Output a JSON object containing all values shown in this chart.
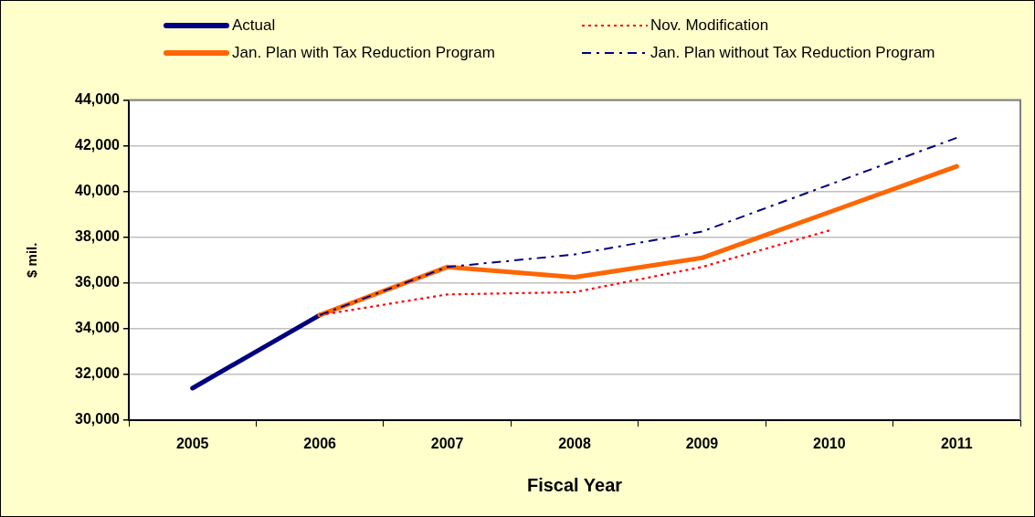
{
  "chart_data": {
    "type": "line",
    "xlabel": "Fiscal Year",
    "ylabel": "$ mil.",
    "categories": [
      "2005",
      "2006",
      "2007",
      "2008",
      "2009",
      "2010",
      "2011"
    ],
    "series": [
      {
        "name": "Actual",
        "color": "#000080",
        "line_style": "solid",
        "values": [
          31400,
          34600,
          null,
          null,
          null,
          null,
          null
        ]
      },
      {
        "name": "Nov. Modification",
        "color": "#ff0000",
        "line_style": "dotted",
        "values": [
          null,
          34600,
          35500,
          35600,
          36700,
          38300,
          null
        ]
      },
      {
        "name": "Jan. Plan with Tax Reduction Program",
        "color": "#ff6600",
        "line_style": "solid",
        "values": [
          null,
          34600,
          36700,
          36250,
          37100,
          39100,
          41100
        ]
      },
      {
        "name": "Jan. Plan without Tax Reduction Program",
        "color": "#000080",
        "line_style": "dashed",
        "values": [
          null,
          34600,
          36700,
          37250,
          38250,
          40300,
          42350
        ]
      }
    ],
    "ylim": [
      30000,
      44000
    ],
    "yticks": [
      {
        "value": 30000,
        "label": "30,000"
      },
      {
        "value": 32000,
        "label": "32,000"
      },
      {
        "value": 34000,
        "label": "34,000"
      },
      {
        "value": 36000,
        "label": "36,000"
      },
      {
        "value": 38000,
        "label": "38,000"
      },
      {
        "value": 40000,
        "label": "40,000"
      },
      {
        "value": 42000,
        "label": "42,000"
      },
      {
        "value": 44000,
        "label": "44,000"
      }
    ],
    "grid": "y",
    "legend": "top",
    "marker": "none"
  }
}
